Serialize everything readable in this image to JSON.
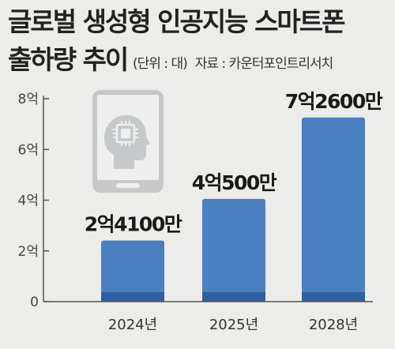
{
  "header": {
    "title_line1": "글로벌 생성형 인공지능 스마트폰",
    "title_line2": "출하량 추이",
    "unit": "(단위 : 대)",
    "source": "자료 : 카운터포인트리서치"
  },
  "icon": "smartphone-ai-chip-icon",
  "colors": {
    "bar": "#4a7fc0",
    "bar_dark": "#2f5f9e",
    "background": "#ececea"
  },
  "chart_data": {
    "type": "bar",
    "categories": [
      "2024년",
      "2025년",
      "2028년"
    ],
    "values": [
      241000000,
      405000000,
      726000000
    ],
    "data_labels": [
      "2억4100만",
      "4억500만",
      "7억2600만"
    ],
    "yticks": [
      {
        "value": 0,
        "label": "0"
      },
      {
        "value": 200000000,
        "label": "2억"
      },
      {
        "value": 400000000,
        "label": "4억"
      },
      {
        "value": 600000000,
        "label": "6억"
      },
      {
        "value": 800000000,
        "label": "8억"
      }
    ],
    "ylim": [
      0,
      800000000
    ],
    "grid": false
  }
}
